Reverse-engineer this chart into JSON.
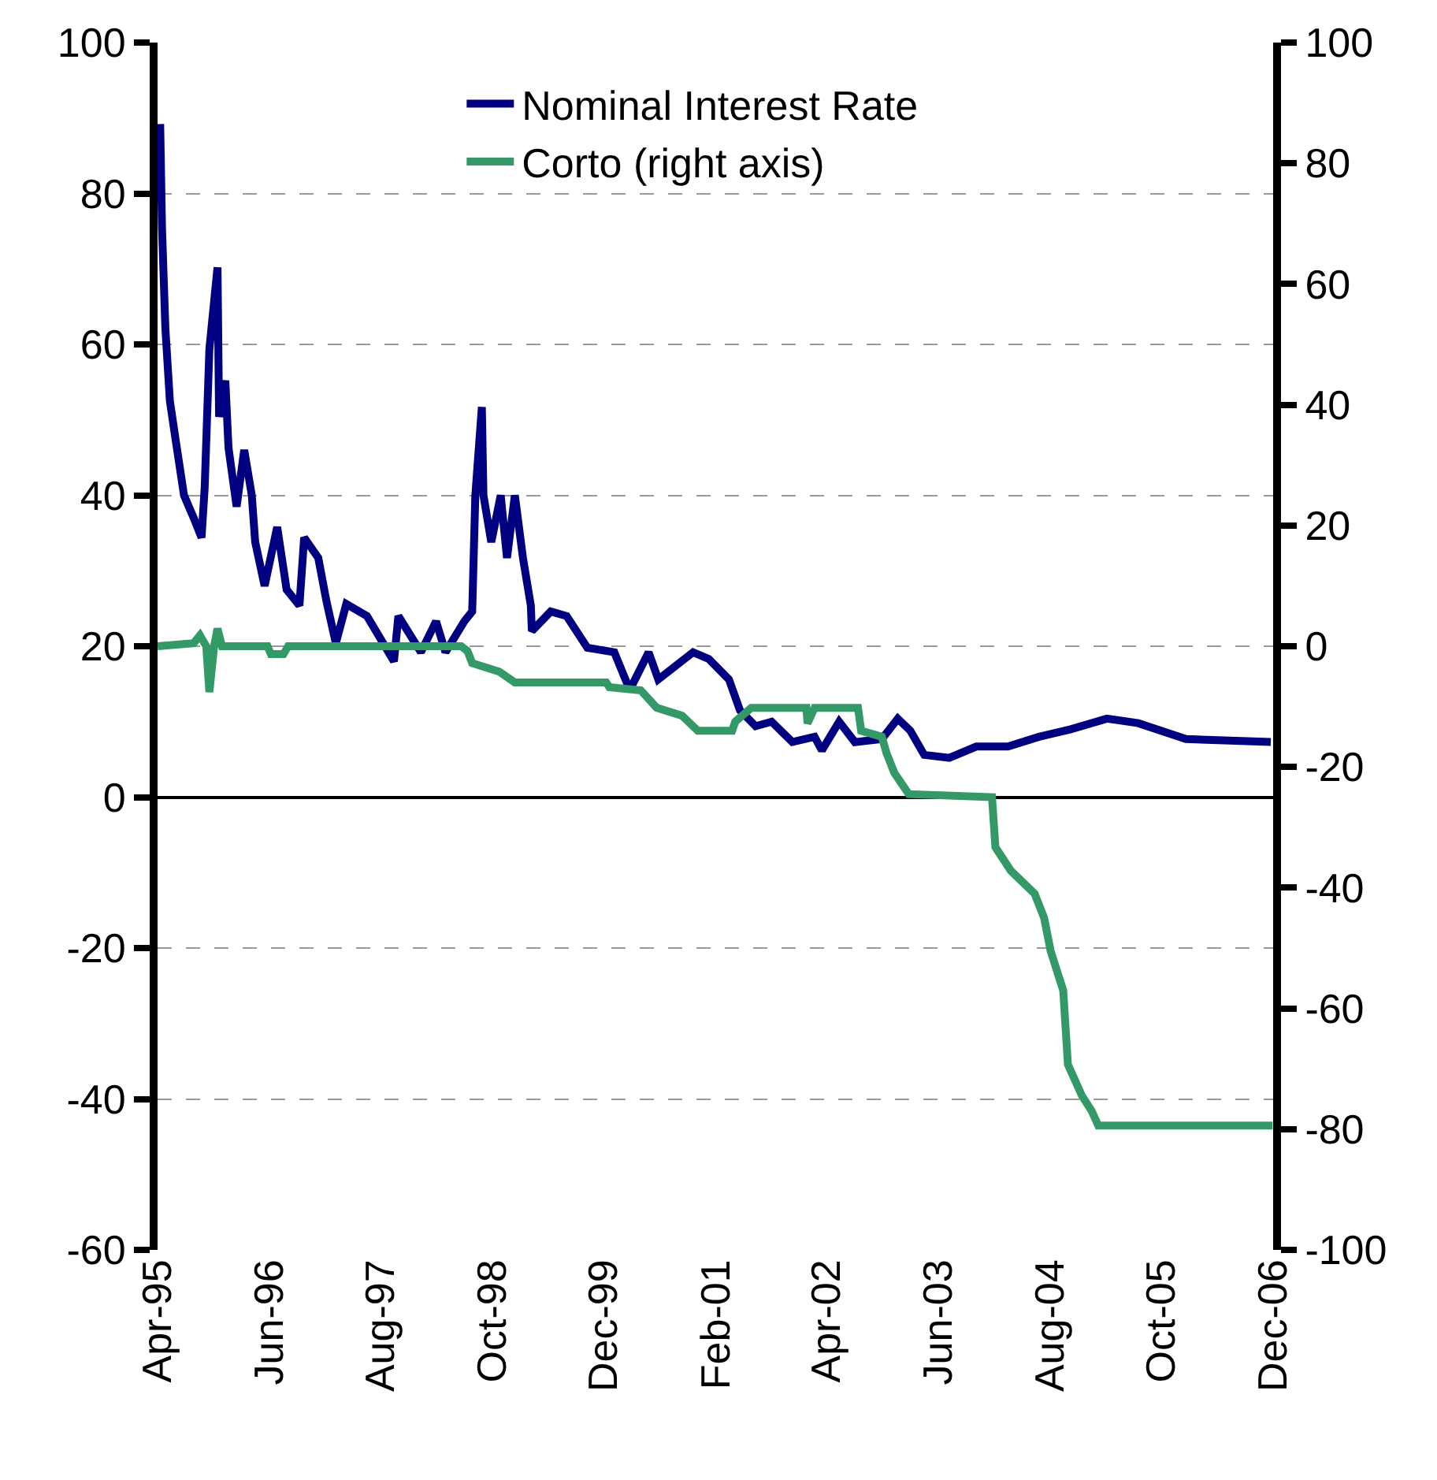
{
  "chart_data": {
    "type": "line",
    "series": [
      {
        "name": "Nominal Interest Rate",
        "color": "#000080",
        "x": [
          "1995-04-11",
          "1995-04-18",
          "1995-05-01",
          "1995-05-18",
          "1995-06-11",
          "1995-07-11",
          "1995-08-17",
          "1995-09-16",
          "1995-09-28",
          "1995-10-16",
          "1995-11-16",
          "1995-11-22",
          "1995-12-16",
          "1995-12-28",
          "1996-01-28",
          "1996-02-26",
          "1996-03-26",
          "1996-04-08",
          "1996-05-14",
          "1996-07-01",
          "1996-08-06",
          "1996-09-24",
          "1996-10-12",
          "1996-12-05",
          "1997-01-05",
          "1997-02-10",
          "1997-03-22",
          "1997-06-09",
          "1997-09-20",
          "1997-10-07",
          "1998-01-01",
          "1998-02-28",
          "1998-04-05",
          "1998-06-16",
          "1998-07-16",
          "1998-07-28",
          "1998-08-22",
          "1998-08-28",
          "1998-09-27",
          "1998-11-02",
          "1998-11-26",
          "1998-12-26",
          "1999-01-26",
          "1999-02-25",
          "1999-03-01",
          "1999-05-12",
          "1999-07-12",
          "1999-09-29",
          "2000-01-10",
          "2000-03-09",
          "2000-05-20",
          "2000-06-26",
          "2000-11-06",
          "2001-01-05",
          "2001-03-23",
          "2001-05-04",
          "2001-07-03",
          "2001-09-02",
          "2001-11-20",
          "2002-02-13",
          "2002-03-13",
          "2002-05-18",
          "2002-07-17",
          "2002-10-28",
          "2002-12-28",
          "2003-02-14",
          "2003-04-08",
          "2003-07-13",
          "2003-10-24",
          "2004-02-22",
          "2004-06-20",
          "2004-10-19",
          "2005-03-06",
          "2005-07-04",
          "2006-01-02",
          "2006-11-22"
        ],
        "values": [
          89.2,
          75.4,
          62,
          52.5,
          46.9,
          40,
          37,
          34.4,
          41,
          59.4,
          70.2,
          50.4,
          55.2,
          46.3,
          38.5,
          46,
          40,
          33.8,
          28,
          35.8,
          27.5,
          25.4,
          34.4,
          31.7,
          26,
          20.4,
          25.6,
          24,
          18,
          24,
          19.2,
          23.3,
          19.2,
          23.3,
          24.6,
          40,
          51.7,
          40,
          33.8,
          40,
          31.7,
          40,
          31.7,
          25.4,
          22,
          24.6,
          24,
          19.8,
          19.2,
          14.2,
          19.2,
          15.6,
          19.2,
          18.3,
          15.6,
          11.5,
          9.4,
          10,
          7.3,
          8,
          6.2,
          10,
          7.3,
          7.7,
          10.4,
          8.8,
          5.6,
          5.2,
          6.7,
          6.7,
          8,
          9,
          10.4,
          9.8,
          7.7,
          7.3
        ]
      },
      {
        "name": "Corto (right axis)",
        "color": "#339966",
        "axis": "y2",
        "x": [
          "1995-04-01",
          "1995-08-17",
          "1995-09-10",
          "1995-10-04",
          "1995-10-16",
          "1995-11-03",
          "1995-11-16",
          "1995-12-03",
          "1996-05-25",
          "1996-06-07",
          "1996-07-25",
          "1996-08-12",
          "1998-06-04",
          "1998-06-28",
          "1998-07-16",
          "1998-10-27",
          "1998-12-26",
          "1999-12-10",
          "1999-12-22",
          "2000-04-20",
          "2000-06-20",
          "2000-09-25",
          "2000-11-24",
          "2001-04-04",
          "2001-04-16",
          "2001-06-16",
          "2002-01-13",
          "2002-01-17",
          "2002-02-13",
          "2002-07-29",
          "2002-08-10",
          "2002-10-28",
          "2002-11-15",
          "2002-12-15",
          "2003-02-08",
          "2003-12-23",
          "2004-01-05",
          "2004-03-04",
          "2004-06-03",
          "2004-07-09",
          "2004-08-03",
          "2004-09-20",
          "2004-10-08",
          "2004-12-01",
          "2005-01-07",
          "2005-02-01",
          "2006-11-29"
        ],
        "values": [
          0,
          0.5,
          1.8,
          0,
          -7.6,
          0,
          2.9,
          0,
          0,
          -1.3,
          -1.3,
          0,
          0,
          -0.8,
          -2.8,
          -4.2,
          -6,
          -6,
          -6.8,
          -7.3,
          -10.2,
          -11.5,
          -14,
          -14,
          -12.5,
          -10.2,
          -10.2,
          -12.8,
          -10.2,
          -10.2,
          -14,
          -15,
          -17.7,
          -21,
          -24.5,
          -25,
          -33.3,
          -37.2,
          -41,
          -45,
          -50.5,
          -57,
          -69.3,
          -74.5,
          -77,
          -79.4,
          -79.4
        ]
      }
    ],
    "xlim": [
      "1995-04-01",
      "2006-12-01"
    ],
    "xticks": [
      {
        "value": "1995-04-01",
        "label": "Apr-95"
      },
      {
        "value": "1996-06-01",
        "label": "Jun-96"
      },
      {
        "value": "1997-08-01",
        "label": "Aug-97"
      },
      {
        "value": "1998-10-01",
        "label": "Oct-98"
      },
      {
        "value": "1999-12-01",
        "label": "Dec-99"
      },
      {
        "value": "2001-02-01",
        "label": "Feb-01"
      },
      {
        "value": "2002-04-01",
        "label": "Apr-02"
      },
      {
        "value": "2003-06-01",
        "label": "Jun-03"
      },
      {
        "value": "2004-08-01",
        "label": "Aug-04"
      },
      {
        "value": "2005-10-01",
        "label": "Oct-05"
      },
      {
        "value": "2006-12-01",
        "label": "Dec-06"
      }
    ],
    "ylim": [
      -60,
      100
    ],
    "yticks": [
      -60,
      -40,
      -20,
      0,
      20,
      40,
      60,
      80,
      100
    ],
    "y2lim": [
      -100,
      100
    ],
    "y2ticks": [
      -100,
      -80,
      -60,
      -40,
      -20,
      0,
      20,
      40,
      60,
      80,
      100
    ],
    "grid": "y",
    "legend": "top right",
    "line_style": "solid",
    "marker": "none"
  }
}
